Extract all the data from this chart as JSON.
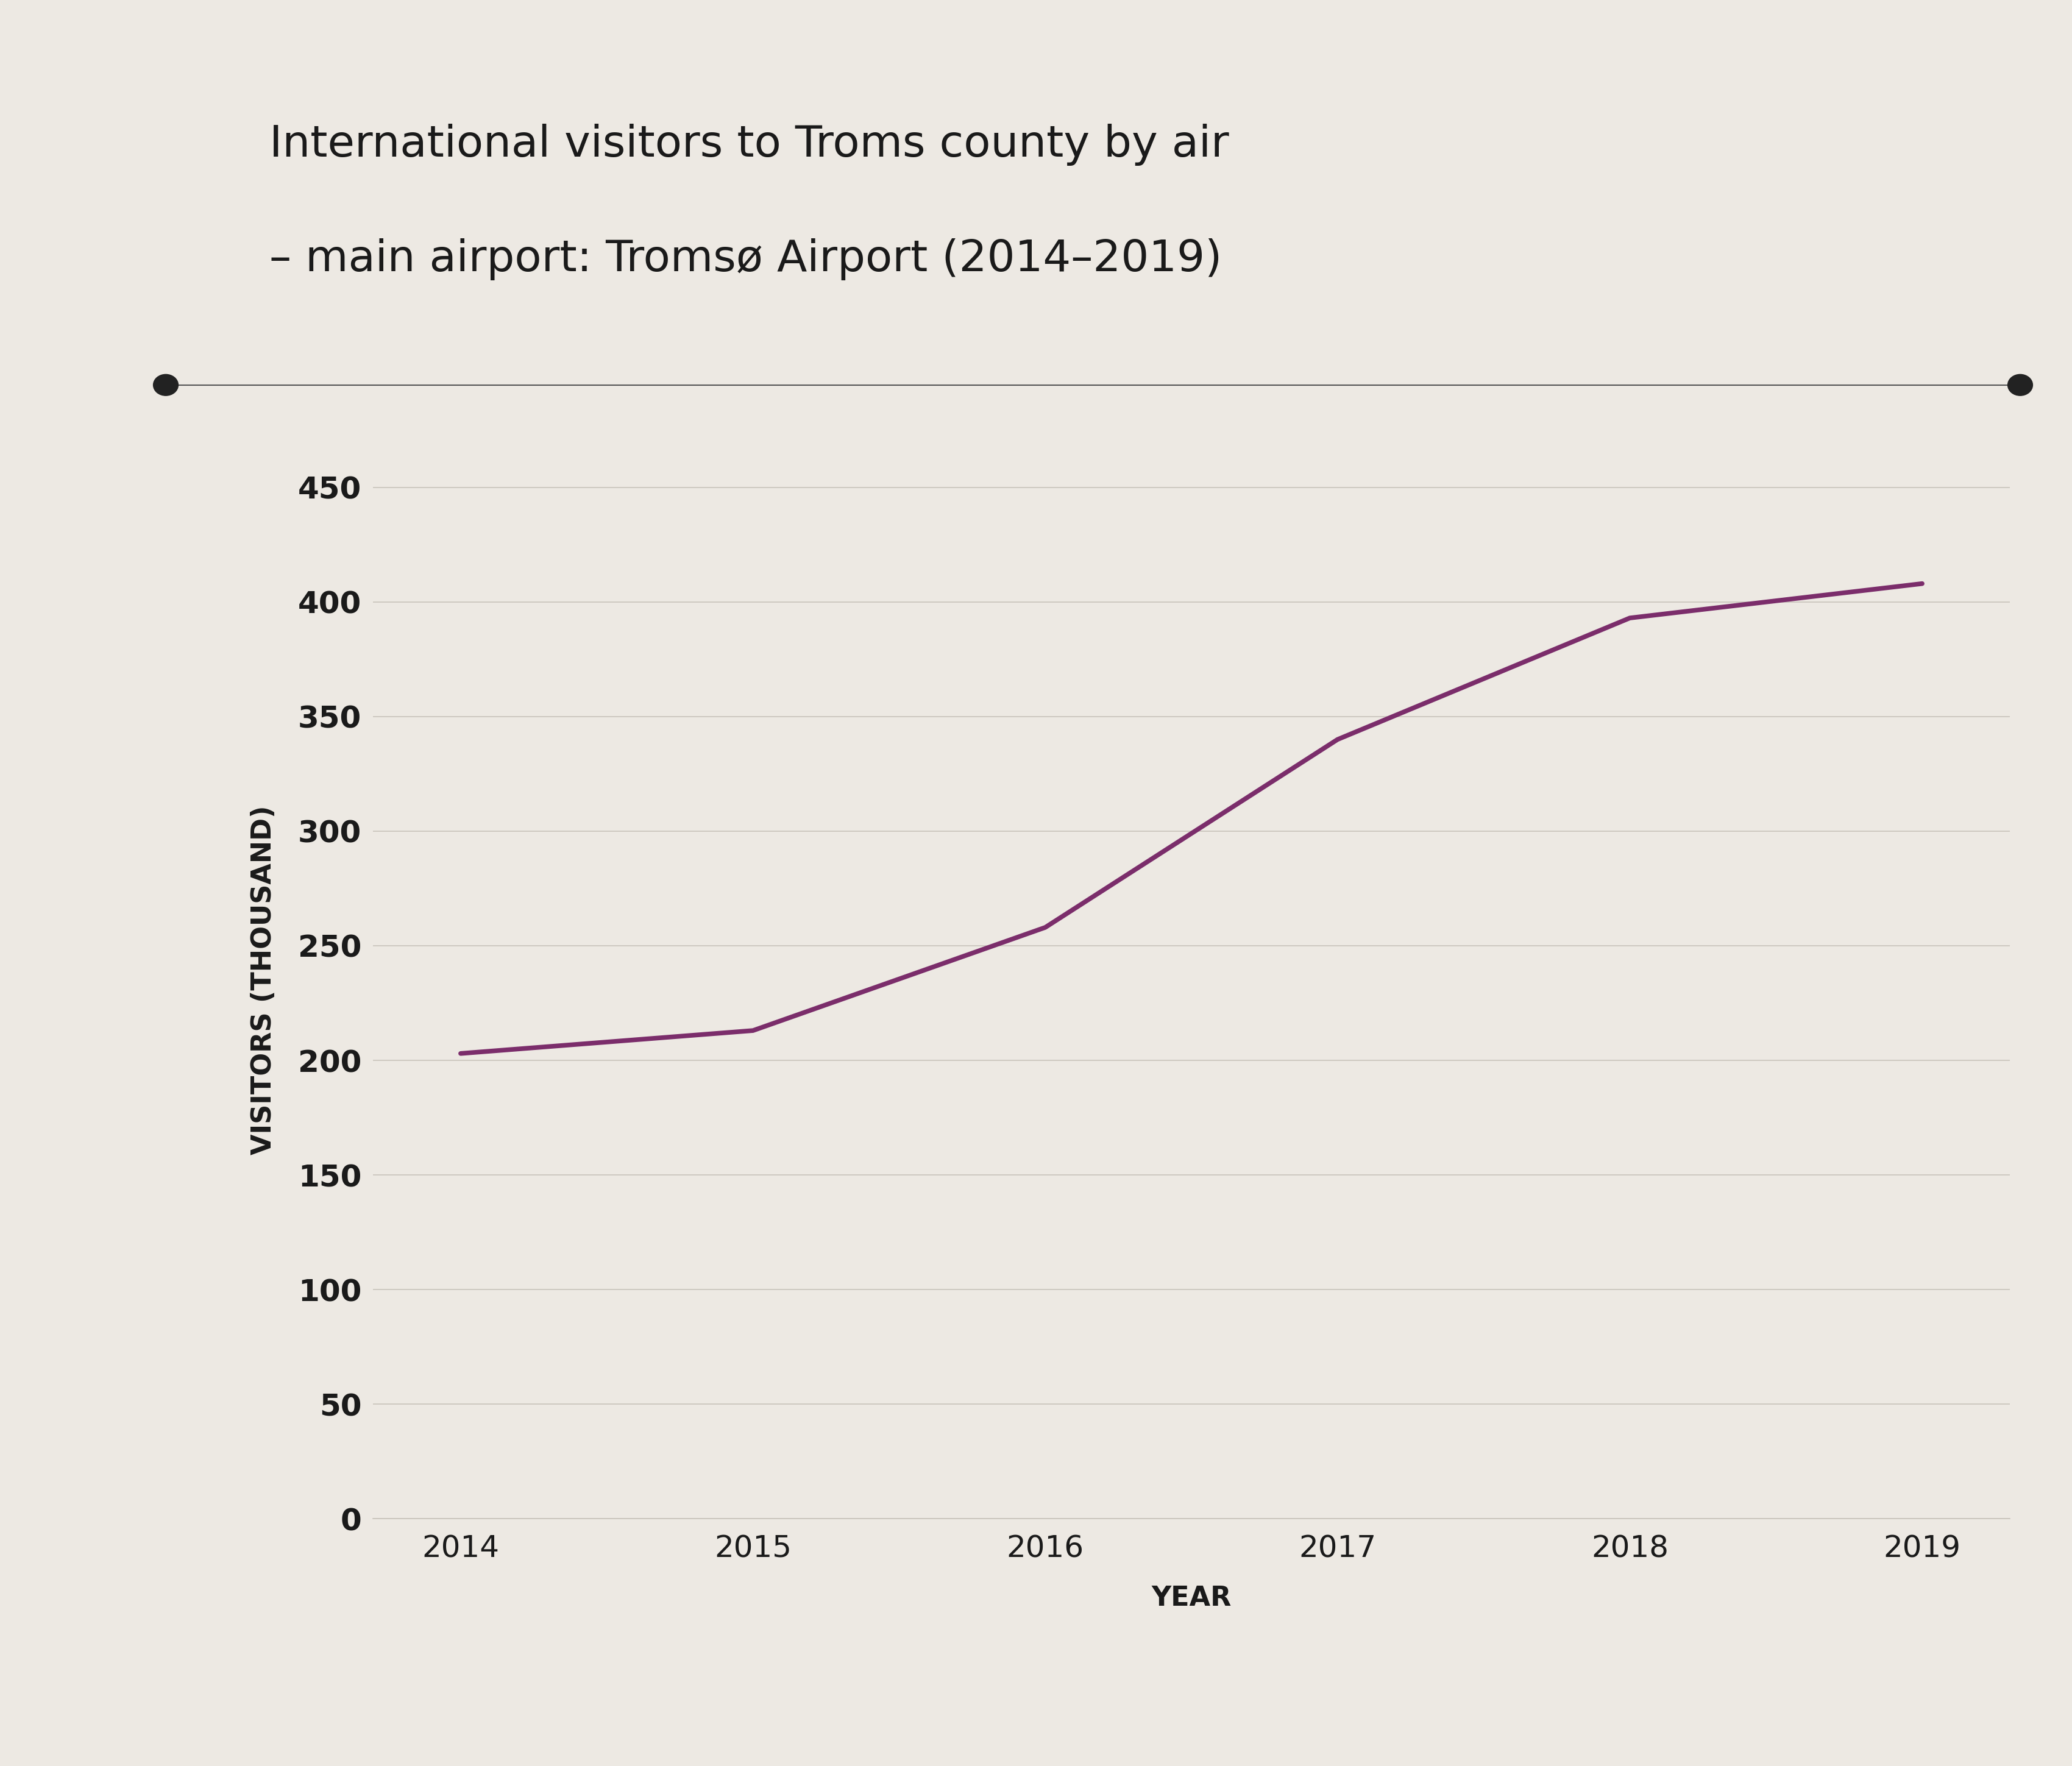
{
  "title_line1": "International visitors to Troms county by air",
  "title_line2": "– main airport: Tromsø Airport (2014–2019)",
  "xlabel": "YEAR",
  "ylabel": "VISITORS (THOUSAND)",
  "years": [
    2014,
    2015,
    2016,
    2017,
    2018,
    2019
  ],
  "values": [
    203,
    213,
    258,
    340,
    393,
    408
  ],
  "line_color": "#7B2D6B",
  "background_color": "#EDE9E3",
  "grid_color": "#C8C3BB",
  "text_color": "#1a1a1a",
  "axis_label_color": "#1a1a1a",
  "yticks": [
    0,
    50,
    100,
    150,
    200,
    250,
    300,
    350,
    400,
    450
  ],
  "ylim": [
    0,
    470
  ],
  "xlim": [
    2013.7,
    2019.3
  ],
  "line_width": 5.5,
  "title_fontsize": 52,
  "axis_label_fontsize": 32,
  "tick_fontsize": 36,
  "separator_color": "#555555",
  "separator_dot_color": "#222222"
}
